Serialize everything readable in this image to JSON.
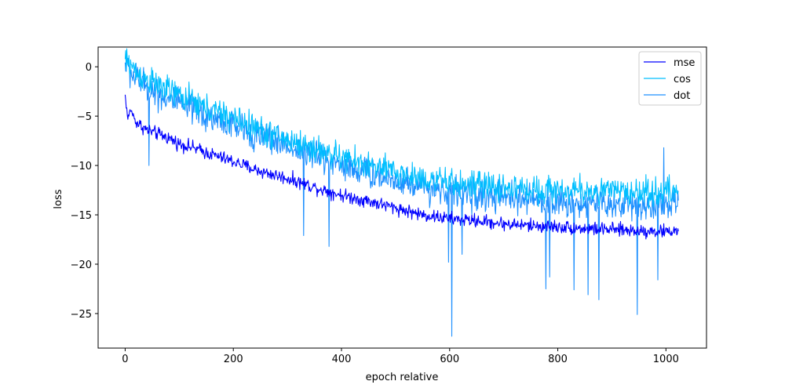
{
  "chart_data": {
    "type": "line",
    "title": "",
    "xlabel": "epoch relative",
    "ylabel": "loss",
    "xlim": [
      -50,
      1075
    ],
    "ylim": [
      -28.5,
      2.0
    ],
    "xticks": [
      0,
      200,
      400,
      600,
      800,
      1000
    ],
    "yticks": [
      0,
      -5,
      -10,
      -15,
      -20,
      -25
    ],
    "grid": false,
    "legend": {
      "position": "top-right",
      "entries": [
        "mse",
        "cos",
        "dot"
      ]
    },
    "series": [
      {
        "name": "mse",
        "color": "#0000ff",
        "x_start": 0,
        "x_end": 1023,
        "points": [
          [
            0,
            -2.9
          ],
          [
            5,
            -5.3
          ],
          [
            10,
            -4.3
          ],
          [
            20,
            -5.6
          ],
          [
            40,
            -6.4
          ],
          [
            60,
            -6.8
          ],
          [
            80,
            -7.2
          ],
          [
            100,
            -7.8
          ],
          [
            120,
            -8.1
          ],
          [
            150,
            -8.7
          ],
          [
            200,
            -9.6
          ],
          [
            250,
            -10.6
          ],
          [
            300,
            -11.3
          ],
          [
            350,
            -12.2
          ],
          [
            400,
            -13.0
          ],
          [
            450,
            -13.6
          ],
          [
            500,
            -14.3
          ],
          [
            550,
            -15.0
          ],
          [
            600,
            -15.4
          ],
          [
            650,
            -15.6
          ],
          [
            700,
            -15.9
          ],
          [
            750,
            -16.1
          ],
          [
            800,
            -16.2
          ],
          [
            850,
            -16.4
          ],
          [
            900,
            -16.5
          ],
          [
            950,
            -16.6
          ],
          [
            1000,
            -16.7
          ],
          [
            1023,
            -16.6
          ]
        ],
        "noise": 1.0
      },
      {
        "name": "cos",
        "color": "#00bfff",
        "x_start": 0,
        "x_end": 1023,
        "points": [
          [
            0,
            0.6
          ],
          [
            10,
            0.3
          ],
          [
            20,
            -0.6
          ],
          [
            50,
            -1.6
          ],
          [
            100,
            -2.9
          ],
          [
            150,
            -4.2
          ],
          [
            200,
            -5.2
          ],
          [
            250,
            -6.4
          ],
          [
            300,
            -7.4
          ],
          [
            350,
            -8.3
          ],
          [
            400,
            -9.2
          ],
          [
            450,
            -10.0
          ],
          [
            500,
            -10.7
          ],
          [
            550,
            -11.3
          ],
          [
            600,
            -11.8
          ],
          [
            650,
            -12.0
          ],
          [
            700,
            -12.3
          ],
          [
            750,
            -12.4
          ],
          [
            800,
            -12.5
          ],
          [
            850,
            -12.6
          ],
          [
            900,
            -12.6
          ],
          [
            950,
            -12.7
          ],
          [
            1000,
            -12.7
          ],
          [
            1023,
            -12.6
          ]
        ],
        "noise": 2.1
      },
      {
        "name": "dot",
        "color": "#1e90ff",
        "x_start": 0,
        "x_end": 1023,
        "points": [
          [
            0,
            0.3
          ],
          [
            10,
            -0.6
          ],
          [
            20,
            -1.2
          ],
          [
            50,
            -2.4
          ],
          [
            100,
            -3.8
          ],
          [
            150,
            -5.0
          ],
          [
            200,
            -6.0
          ],
          [
            250,
            -7.0
          ],
          [
            300,
            -8.0
          ],
          [
            350,
            -9.0
          ],
          [
            400,
            -9.9
          ],
          [
            450,
            -10.8
          ],
          [
            500,
            -11.5
          ],
          [
            550,
            -12.1
          ],
          [
            600,
            -12.6
          ],
          [
            650,
            -13.0
          ],
          [
            700,
            -13.3
          ],
          [
            750,
            -13.5
          ],
          [
            800,
            -13.7
          ],
          [
            850,
            -13.8
          ],
          [
            900,
            -13.9
          ],
          [
            950,
            -14.0
          ],
          [
            1000,
            -14.0
          ],
          [
            1023,
            -13.9
          ]
        ],
        "noise": 2.3,
        "spikes": [
          [
            44,
            -10.0
          ],
          [
            330,
            -17.1
          ],
          [
            377,
            -18.2
          ],
          [
            598,
            -19.8
          ],
          [
            604,
            -27.3
          ],
          [
            623,
            -19.0
          ],
          [
            778,
            -22.5
          ],
          [
            785,
            -21.3
          ],
          [
            830,
            -22.6
          ],
          [
            856,
            -23.1
          ],
          [
            876,
            -23.6
          ],
          [
            947,
            -25.1
          ],
          [
            985,
            -21.6
          ],
          [
            996,
            -8.2
          ]
        ]
      }
    ]
  }
}
